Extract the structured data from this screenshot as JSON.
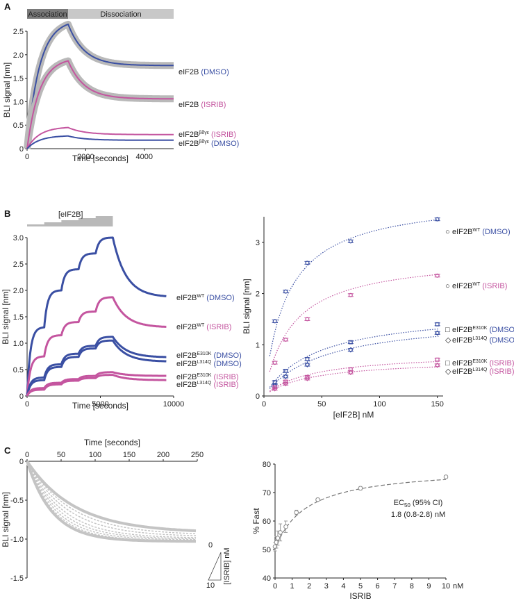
{
  "colors": {
    "dmso": "#3a4fa3",
    "isrib": "#c4559f",
    "band": "#b9b9b9",
    "gray": "#9a9a9a",
    "axis": "#222222"
  },
  "chart_data": [
    {
      "panel": "A",
      "type": "line",
      "phase_bar": {
        "association": "Association",
        "dissociation": "Dissociation"
      },
      "xlabel": "Time [seconds]",
      "ylabel": "BLI signal [nm]",
      "xlim": [
        0,
        5000
      ],
      "ylim": [
        0,
        2.5
      ],
      "xticks": [
        "0",
        "2000",
        "4000"
      ],
      "yticks": [
        "0",
        "0.5",
        "1.0",
        "1.5",
        "2.0",
        "2.5"
      ],
      "assoc_end": 1400,
      "series": [
        {
          "name": "eIF2B",
          "sup": "",
          "cond": "(DMSO)",
          "color": "dmso",
          "band": true,
          "peak": 2.65,
          "end": 1.77
        },
        {
          "name": "eIF2B",
          "sup": "",
          "cond": "(ISRIB)",
          "color": "isrib",
          "band": true,
          "peak": 1.87,
          "end": 1.06
        },
        {
          "name": "eIF2B",
          "sup": "βδγε",
          "cond": "(ISRIB)",
          "color": "isrib",
          "band": false,
          "peak": 0.45,
          "end": 0.3
        },
        {
          "name": "eIF2B",
          "sup": "βδγε",
          "cond": "(DMSO)",
          "color": "dmso",
          "band": false,
          "peak": 0.27,
          "end": 0.18
        }
      ]
    },
    {
      "panel": "B",
      "type": "line",
      "conc_label": "[eIF2B]",
      "xlabel": "Time [seconds]",
      "ylabel": "BLI signal [nm]",
      "xlim": [
        0,
        10000
      ],
      "ylim": [
        0,
        3.0
      ],
      "xticks": [
        "0",
        "5000",
        "10000"
      ],
      "yticks": [
        "0",
        "0.5",
        "1.0",
        "1.5",
        "2.0",
        "2.5",
        "3.0"
      ],
      "steps": [
        0,
        1170,
        2340,
        3510,
        4680,
        5850
      ],
      "series": [
        {
          "name": "eIF2B",
          "sup": "WT",
          "cond": "(DMSO)",
          "color": "dmso",
          "levels": [
            1.3,
            2.0,
            2.4,
            2.7,
            3.0
          ],
          "end": 1.87
        },
        {
          "name": "eIF2B",
          "sup": "WT",
          "cond": "(ISRIB)",
          "color": "isrib",
          "levels": [
            0.75,
            1.15,
            1.4,
            1.6,
            1.87
          ],
          "end": 1.3
        },
        {
          "name": "eIF2B",
          "sup": "E310K",
          "cond": "(DMSO)",
          "color": "dmso",
          "levels": [
            0.35,
            0.6,
            0.8,
            0.95,
            1.12
          ],
          "end": 0.73
        },
        {
          "name": "eIF2B",
          "sup": "L314Q",
          "cond": "(DMSO)",
          "color": "dmso",
          "levels": [
            0.3,
            0.55,
            0.74,
            0.9,
            1.05
          ],
          "end": 0.65
        },
        {
          "name": "eIF2B",
          "sup": "E310K",
          "cond": "(ISRIB)",
          "color": "isrib",
          "levels": [
            0.15,
            0.25,
            0.32,
            0.38,
            0.45
          ],
          "end": 0.38
        },
        {
          "name": "eIF2B",
          "sup": "L314Q",
          "cond": "(ISRIB)",
          "color": "isrib",
          "levels": [
            0.12,
            0.22,
            0.29,
            0.34,
            0.4
          ],
          "end": 0.3
        }
      ]
    },
    {
      "panel": "B",
      "type": "scatter",
      "xlabel": "[eIF2B] nM",
      "ylabel": "BLI signal [nm]",
      "xlim": [
        0,
        155
      ],
      "ylim": [
        0,
        3.5
      ],
      "xticks": [
        "0",
        "50",
        "100",
        "150"
      ],
      "yticks": [
        "0",
        "1",
        "2",
        "3"
      ],
      "x": [
        9.4,
        18.75,
        37.5,
        75,
        150
      ],
      "series": [
        {
          "name": "eIF2B",
          "sup": "WT",
          "cond": "(DMSO)",
          "color": "dmso",
          "marker": "○",
          "values": [
            1.46,
            2.04,
            2.6,
            3.02,
            3.45
          ],
          "Bmax": 3.9,
          "Kd": 20
        },
        {
          "name": "eIF2B",
          "sup": "WT",
          "cond": "(ISRIB)",
          "color": "isrib",
          "marker": "○",
          "values": [
            0.65,
            1.1,
            1.5,
            1.97,
            2.35
          ],
          "Bmax": 2.75,
          "Kd": 24
        },
        {
          "name": "eIF2B",
          "sup": "E310K",
          "cond": "(DMSO)",
          "color": "dmso",
          "marker": "□",
          "values": [
            0.27,
            0.49,
            0.72,
            1.05,
            1.4
          ],
          "Bmax": 1.7,
          "Kd": 45
        },
        {
          "name": "eIF2B",
          "sup": "L314Q",
          "cond": "(DMSO)",
          "color": "dmso",
          "marker": "◇",
          "values": [
            0.2,
            0.38,
            0.61,
            0.9,
            1.23
          ],
          "Bmax": 1.55,
          "Kd": 50
        },
        {
          "name": "eIF2B",
          "sup": "E310K",
          "cond": "(ISRIB)",
          "color": "isrib",
          "marker": "□",
          "values": [
            0.17,
            0.28,
            0.37,
            0.52,
            0.71
          ],
          "Bmax": 0.85,
          "Kd": 40
        },
        {
          "name": "eIF2B",
          "sup": "L314Q",
          "cond": "(ISRIB)",
          "color": "isrib",
          "marker": "◇",
          "values": [
            0.14,
            0.24,
            0.34,
            0.46,
            0.6
          ],
          "Bmax": 0.72,
          "Kd": 40
        }
      ]
    },
    {
      "panel": "C",
      "type": "line",
      "xlabel": "Time [seconds]",
      "ylabel": "BLI signal [nm]",
      "xlim": [
        0,
        250
      ],
      "ylim": [
        -1.5,
        0
      ],
      "xticks": [
        "0",
        "50",
        "100",
        "150",
        "200",
        "250"
      ],
      "yticks": [
        "0",
        "-0.5",
        "-1.0",
        "-1.5"
      ],
      "legend": {
        "top": "0",
        "bottom": "10",
        "label": "[ISRIB] nM"
      },
      "series_end": [
        -0.92,
        -0.95,
        -0.97,
        -0.99,
        -1.0,
        -1.01,
        -1.02,
        -1.03
      ],
      "series_tau": [
        70,
        64,
        58,
        52,
        47,
        43,
        40,
        37
      ]
    },
    {
      "panel": "C",
      "type": "scatter",
      "xlabel": "ISRIB",
      "xunit": "nM",
      "ylabel": "% Fast",
      "xlim": [
        0,
        10
      ],
      "ylim": [
        40,
        80
      ],
      "xticks": [
        "0",
        "1",
        "2",
        "3",
        "4",
        "5",
        "6",
        "7",
        "8",
        "9",
        "10"
      ],
      "yticks": [
        "40",
        "50",
        "60",
        "70",
        "80"
      ],
      "x": [
        0,
        0.08,
        0.16,
        0.31,
        0.63,
        1.25,
        2.5,
        5,
        10
      ],
      "values": [
        51,
        52.5,
        54,
        56,
        58,
        63,
        67.5,
        71.5,
        75.5
      ],
      "errors": [
        1.5,
        2,
        2.5,
        3,
        2,
        0.8,
        0.5,
        0.6,
        0.5
      ],
      "fit": {
        "bottom": 50,
        "top": 79,
        "ec50": 1.8
      },
      "annotation": {
        "line1": "EC",
        "sub": "50",
        "line1_rest": " (95% CI)",
        "line2": "1.8 (0.8-2.8) nM"
      }
    }
  ]
}
